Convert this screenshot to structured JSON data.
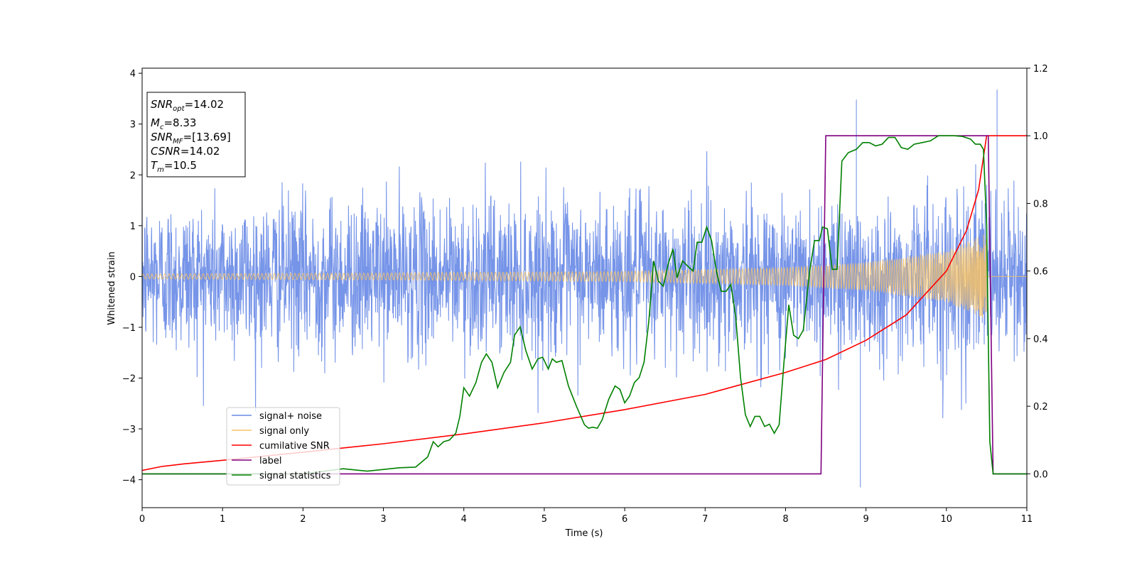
{
  "chart_data": {
    "type": "line",
    "xlabel": "Time (s)",
    "ylabel": "Whitened strain",
    "xlim": [
      0,
      11
    ],
    "ylim_left": [
      -4.55,
      4.1
    ],
    "ylim_right": [
      -0.1,
      1.2
    ],
    "xticks": [
      "0",
      "1",
      "2",
      "3",
      "4",
      "5",
      "6",
      "7",
      "8",
      "9",
      "10",
      "11"
    ],
    "yticks_left": [
      "−4",
      "−3",
      "−2",
      "−1",
      "0",
      "1",
      "2",
      "3",
      "4"
    ],
    "yticks_right": [
      "0.0",
      "0.2",
      "0.4",
      "0.6",
      "0.8",
      "1.0",
      "1.2"
    ],
    "legend_position": "lower-left",
    "legend": [
      "signal+ noise",
      "signal only",
      "cumilative SNR",
      "label",
      "signal statistics"
    ],
    "info_box": {
      "snr_opt": {
        "sym": "SNR",
        "sub": "opt",
        "value": "=14.02"
      },
      "mc": {
        "sym": "M",
        "sub": "c",
        "value": "=8.33"
      },
      "snr_mf": {
        "sym": "SNR",
        "sub": "MF",
        "value": "=[13.69]"
      },
      "csnr": {
        "sym": "CSNR",
        "value": "=14.02"
      },
      "tm": {
        "sym": "T",
        "sub": "m",
        "value": "=10.5"
      }
    },
    "series": [
      {
        "name": "signal+ noise",
        "axis": "left",
        "color": "#6a8be6",
        "description": "whitened strain, dense noise between about -2.5 and 2.8 with outliers (3.5 at 8.88 s, 3.7 at 10.63 s, -4.15 at 8.93 s)",
        "t_range": [
          0,
          11
        ],
        "amplitude_typical": 2.2,
        "outliers": [
          [
            8.88,
            3.48
          ],
          [
            8.93,
            -4.15
          ],
          [
            10.63,
            3.68
          ]
        ]
      },
      {
        "name": "signal only",
        "axis": "left",
        "color": "#f5c26a",
        "description": "chirp growing from ~0.05 at t=0 to ~0.8 at t=10.5 s, then zero",
        "amplitude_points": [
          [
            0,
            0.05
          ],
          [
            3,
            0.07
          ],
          [
            6,
            0.1
          ],
          [
            8,
            0.18
          ],
          [
            9,
            0.28
          ],
          [
            10,
            0.5
          ],
          [
            10.5,
            0.85
          ]
        ],
        "merger_time": 10.5
      },
      {
        "name": "cumilative SNR",
        "axis": "right",
        "color": "#ff0000",
        "points": [
          [
            0,
            0.01
          ],
          [
            0.25,
            0.022
          ],
          [
            0.5,
            0.029
          ],
          [
            1,
            0.04
          ],
          [
            2,
            0.064
          ],
          [
            3,
            0.089
          ],
          [
            4,
            0.118
          ],
          [
            5,
            0.151
          ],
          [
            6,
            0.19
          ],
          [
            7,
            0.235
          ],
          [
            8,
            0.3
          ],
          [
            8.5,
            0.338
          ],
          [
            9,
            0.395
          ],
          [
            9.5,
            0.47
          ],
          [
            10,
            0.6
          ],
          [
            10.25,
            0.72
          ],
          [
            10.4,
            0.84
          ],
          [
            10.5,
            1.0
          ],
          [
            11,
            1.0
          ]
        ]
      },
      {
        "name": "label",
        "axis": "right",
        "color": "#800080",
        "points": [
          [
            0,
            0
          ],
          [
            8.44,
            0
          ],
          [
            8.5,
            1.0
          ],
          [
            10.52,
            1.0
          ],
          [
            10.58,
            0
          ],
          [
            11,
            0
          ]
        ]
      },
      {
        "name": "signal statistics",
        "axis": "right",
        "color": "#008000",
        "points": [
          [
            0,
            0
          ],
          [
            2.0,
            0
          ],
          [
            2.5,
            0.015
          ],
          [
            2.8,
            0.008
          ],
          [
            3.2,
            0.018
          ],
          [
            3.4,
            0.02
          ],
          [
            3.55,
            0.05
          ],
          [
            3.62,
            0.095
          ],
          [
            3.68,
            0.08
          ],
          [
            3.75,
            0.095
          ],
          [
            3.82,
            0.1
          ],
          [
            3.9,
            0.12
          ],
          [
            3.95,
            0.17
          ],
          [
            4.0,
            0.255
          ],
          [
            4.07,
            0.23
          ],
          [
            4.15,
            0.27
          ],
          [
            4.22,
            0.33
          ],
          [
            4.28,
            0.355
          ],
          [
            4.35,
            0.33
          ],
          [
            4.42,
            0.255
          ],
          [
            4.5,
            0.3
          ],
          [
            4.58,
            0.33
          ],
          [
            4.63,
            0.41
          ],
          [
            4.7,
            0.435
          ],
          [
            4.77,
            0.365
          ],
          [
            4.85,
            0.31
          ],
          [
            4.92,
            0.34
          ],
          [
            4.98,
            0.345
          ],
          [
            5.05,
            0.31
          ],
          [
            5.1,
            0.34
          ],
          [
            5.15,
            0.33
          ],
          [
            5.22,
            0.335
          ],
          [
            5.3,
            0.26
          ],
          [
            5.4,
            0.2
          ],
          [
            5.5,
            0.145
          ],
          [
            5.55,
            0.135
          ],
          [
            5.6,
            0.138
          ],
          [
            5.66,
            0.135
          ],
          [
            5.72,
            0.16
          ],
          [
            5.8,
            0.22
          ],
          [
            5.88,
            0.26
          ],
          [
            5.94,
            0.25
          ],
          [
            6.0,
            0.21
          ],
          [
            6.06,
            0.23
          ],
          [
            6.12,
            0.27
          ],
          [
            6.18,
            0.285
          ],
          [
            6.24,
            0.33
          ],
          [
            6.3,
            0.45
          ],
          [
            6.36,
            0.63
          ],
          [
            6.42,
            0.57
          ],
          [
            6.48,
            0.555
          ],
          [
            6.54,
            0.62
          ],
          [
            6.6,
            0.665
          ],
          [
            6.65,
            0.58
          ],
          [
            6.72,
            0.63
          ],
          [
            6.78,
            0.615
          ],
          [
            6.85,
            0.6
          ],
          [
            6.9,
            0.685
          ],
          [
            6.96,
            0.685
          ],
          [
            7.02,
            0.73
          ],
          [
            7.08,
            0.69
          ],
          [
            7.14,
            0.6
          ],
          [
            7.2,
            0.54
          ],
          [
            7.26,
            0.54
          ],
          [
            7.32,
            0.56
          ],
          [
            7.38,
            0.465
          ],
          [
            7.44,
            0.285
          ],
          [
            7.5,
            0.175
          ],
          [
            7.56,
            0.14
          ],
          [
            7.62,
            0.17
          ],
          [
            7.68,
            0.17
          ],
          [
            7.74,
            0.14
          ],
          [
            7.8,
            0.147
          ],
          [
            7.86,
            0.12
          ],
          [
            7.92,
            0.145
          ],
          [
            7.98,
            0.33
          ],
          [
            8.04,
            0.5
          ],
          [
            8.1,
            0.41
          ],
          [
            8.16,
            0.4
          ],
          [
            8.22,
            0.425
          ],
          [
            8.3,
            0.6
          ],
          [
            8.36,
            0.69
          ],
          [
            8.42,
            0.69
          ],
          [
            8.46,
            0.73
          ],
          [
            8.52,
            0.725
          ],
          [
            8.58,
            0.605
          ],
          [
            8.64,
            0.605
          ],
          [
            8.7,
            0.925
          ],
          [
            8.78,
            0.95
          ],
          [
            8.88,
            0.96
          ],
          [
            8.96,
            0.98
          ],
          [
            9.04,
            0.98
          ],
          [
            9.12,
            0.97
          ],
          [
            9.2,
            0.975
          ],
          [
            9.28,
            0.995
          ],
          [
            9.36,
            0.995
          ],
          [
            9.44,
            0.965
          ],
          [
            9.52,
            0.96
          ],
          [
            9.6,
            0.975
          ],
          [
            9.7,
            0.98
          ],
          [
            9.8,
            0.985
          ],
          [
            9.9,
            1.0
          ],
          [
            10.0,
            1.0
          ],
          [
            10.1,
            1.0
          ],
          [
            10.2,
            0.998
          ],
          [
            10.3,
            0.99
          ],
          [
            10.36,
            0.975
          ],
          [
            10.42,
            0.975
          ],
          [
            10.46,
            0.96
          ],
          [
            10.5,
            0.735
          ],
          [
            10.54,
            0.095
          ],
          [
            10.58,
            0.0
          ],
          [
            10.7,
            0.0
          ],
          [
            11,
            0.0
          ]
        ]
      }
    ]
  }
}
